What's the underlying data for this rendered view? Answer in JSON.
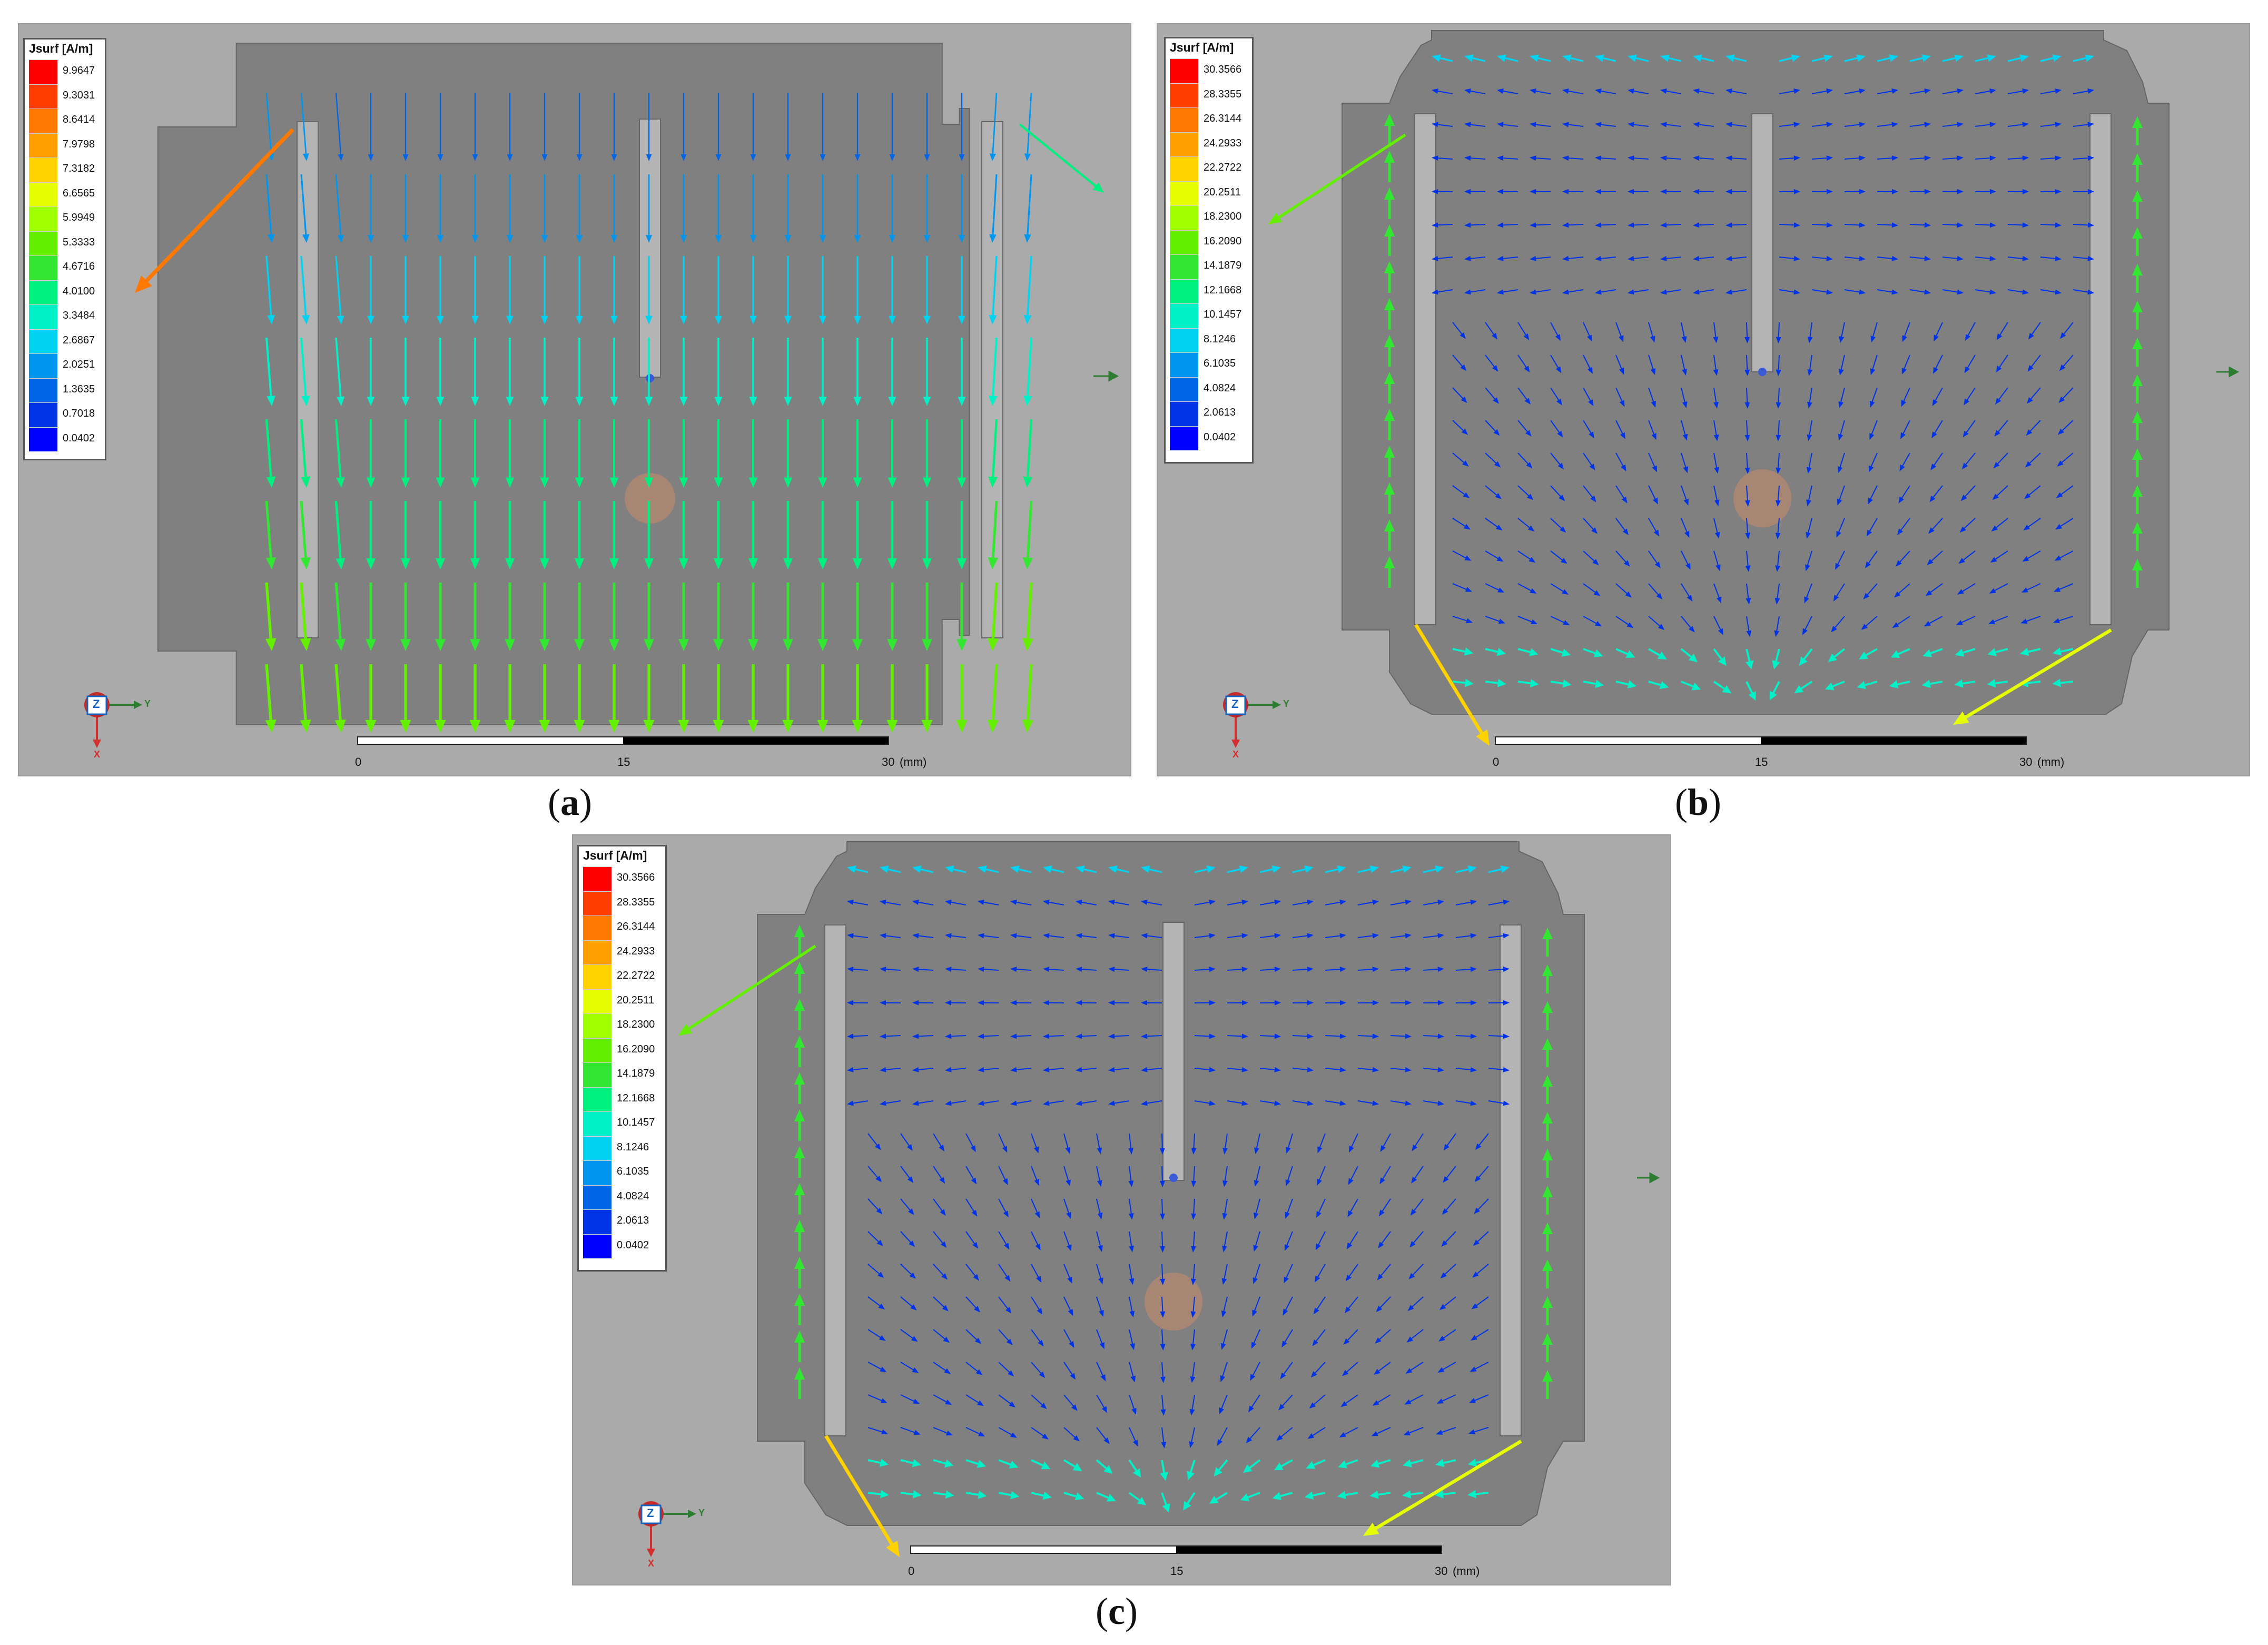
{
  "legend_title": "Jsurf [A/m]",
  "scale_units": "(mm)",
  "scale_ticks": [
    "0",
    "15",
    "30"
  ],
  "triad": {
    "z": "Z",
    "y": "Y",
    "x": "X"
  },
  "panels": [
    {
      "id": "a",
      "caption_open": "(",
      "caption_letter": "a",
      "caption_close": ")",
      "legend_values": [
        "9.9647",
        "9.3031",
        "8.6414",
        "7.9798",
        "7.3182",
        "6.6565",
        "5.9949",
        "5.3333",
        "4.6716",
        "4.0100",
        "3.3484",
        "2.6867",
        "2.0251",
        "1.3635",
        "0.7018",
        "0.0402"
      ],
      "pattern": "uniform"
    },
    {
      "id": "b",
      "caption_open": "(",
      "caption_letter": "b",
      "caption_close": ")",
      "legend_values": [
        "30.3566",
        "28.3355",
        "26.3144",
        "24.2933",
        "22.2722",
        "20.2511",
        "18.2300",
        "16.2090",
        "14.1879",
        "12.1668",
        "10.1457",
        "8.1246",
        "6.1035",
        "4.0824",
        "2.0613",
        "0.0402"
      ],
      "pattern": "radial"
    },
    {
      "id": "c",
      "caption_open": "(",
      "caption_letter": "c",
      "caption_close": ")",
      "legend_values": [
        "30.3566",
        "28.3355",
        "26.3144",
        "24.2933",
        "22.2722",
        "20.2511",
        "18.2300",
        "16.2090",
        "14.1879",
        "12.1668",
        "10.1457",
        "8.1246",
        "6.1035",
        "4.0824",
        "2.0613",
        "0.0402"
      ],
      "pattern": "radial"
    }
  ],
  "colors": {
    "background": "#aaaaaa",
    "patch": "#808080",
    "slot": "#b4b4b4",
    "legend_scale": [
      "#ff0000",
      "#ff3c00",
      "#ff7800",
      "#ffa000",
      "#ffd200",
      "#e6ff00",
      "#a0ff00",
      "#64f000",
      "#32e632",
      "#00f080",
      "#00f0c8",
      "#00d2f0",
      "#0096f0",
      "#0064e6",
      "#0032e6",
      "#0000ff"
    ]
  }
}
